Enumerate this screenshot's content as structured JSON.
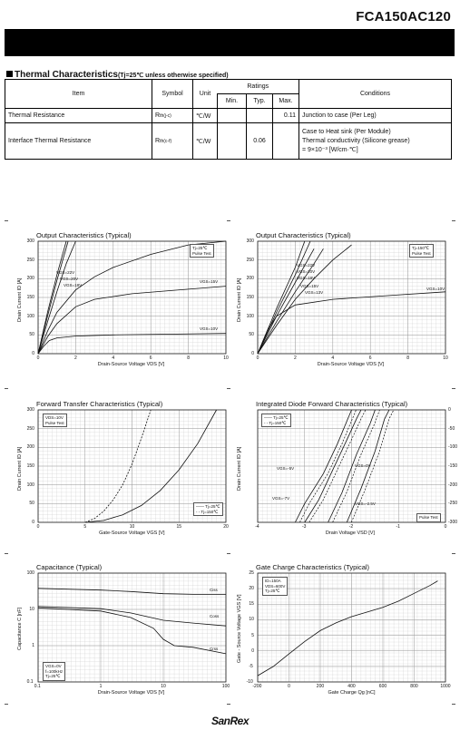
{
  "header": {
    "part_number": "FCA150AC120"
  },
  "thermal": {
    "title": "Thermal Characteristics",
    "condition": "(Tj=25℃ unless otherwise specified)",
    "head": {
      "item": "Item",
      "symbol": "Symbol",
      "unit": "Unit",
      "ratings": "Ratings",
      "min": "Min.",
      "typ": "Typ.",
      "max": "Max.",
      "conditions": "Conditions"
    },
    "rows": [
      {
        "item": "Thermal Resistance",
        "symbol": "R",
        "symbol_sub": "th(j-c)",
        "unit": "℃/W",
        "min": "",
        "typ": "",
        "max": "0.11",
        "conditions": [
          "Junction to case (Per Leg)"
        ]
      },
      {
        "item": "Interface Thermal Resistance",
        "symbol": "R",
        "symbol_sub": "th(c-f)",
        "unit": "℃/W",
        "min": "",
        "typ": "0.06",
        "max": "",
        "conditions": [
          "Case to Heat sink (Per Module)",
          "Thermal conductivity (Silicone grease)",
          "= 9×10⁻³ [W/cm·℃]"
        ]
      }
    ]
  },
  "footer": {
    "logo": "SanRex"
  },
  "chart_data": [
    {
      "type": "line",
      "title": "Output Characteristics (Typical)",
      "xlabel": "Drain-Source Voltage  VDS [V]",
      "ylabel": "Drain Current  ID [A]",
      "xlim": [
        0,
        10
      ],
      "ylim": [
        0,
        300
      ],
      "xticks": [
        "0",
        "2",
        "4",
        "6",
        "8",
        "10"
      ],
      "yticks": [
        "0",
        "50",
        "100",
        "150",
        "200",
        "250",
        "300"
      ],
      "condition_box": [
        "Tj=25℃",
        "Pulse Test"
      ],
      "annotations": [
        "VGS=22V",
        "VGS=20V",
        "VGS=18V",
        "VGS=15V",
        "VGS=10V"
      ],
      "series": [
        {
          "name": "VGS=22V",
          "x": [
            0,
            0.5,
            1,
            1.5
          ],
          "y": [
            0,
            110,
            210,
            300
          ]
        },
        {
          "name": "VGS=20V",
          "x": [
            0,
            0.5,
            1,
            1.6
          ],
          "y": [
            0,
            100,
            195,
            300
          ]
        },
        {
          "name": "VGS=18V",
          "x": [
            0,
            0.5,
            1,
            1.5,
            2
          ],
          "y": [
            0,
            85,
            165,
            240,
            300
          ]
        },
        {
          "name": "VGS=15V",
          "x": [
            0,
            0.5,
            1,
            2,
            3,
            4,
            6,
            8,
            10
          ],
          "y": [
            0,
            60,
            110,
            170,
            205,
            230,
            265,
            290,
            300
          ]
        },
        {
          "name": "VGS=15V (sat)",
          "x": [
            0,
            0.5,
            1,
            2,
            3,
            5,
            8,
            10
          ],
          "y": [
            0,
            45,
            80,
            125,
            145,
            160,
            172,
            180
          ]
        },
        {
          "name": "VGS=10V",
          "x": [
            0,
            0.3,
            0.6,
            1,
            2,
            4,
            7,
            10
          ],
          "y": [
            0,
            20,
            35,
            42,
            47,
            50,
            52,
            54
          ]
        }
      ]
    },
    {
      "type": "line",
      "title": "Output Characteristics (Typical)",
      "xlabel": "Drain-Source Voltage  VDS [V]",
      "ylabel": "Drain Current  ID [A]",
      "xlim": [
        0,
        10
      ],
      "ylim": [
        0,
        300
      ],
      "xticks": [
        "0",
        "2",
        "4",
        "6",
        "8",
        "10"
      ],
      "yticks": [
        "0",
        "50",
        "100",
        "150",
        "200",
        "250",
        "300"
      ],
      "condition_box": [
        "Tj=150℃",
        "Pulse Test"
      ],
      "annotations": [
        "VGS=22V",
        "VGS=20V",
        "VGS=18V",
        "VGS=15V",
        "VGS=13V",
        "VGS=10V"
      ],
      "series": [
        {
          "name": "VGS=22V",
          "x": [
            0,
            1,
            2,
            2.5
          ],
          "y": [
            0,
            120,
            230,
            300
          ]
        },
        {
          "name": "VGS=20V",
          "x": [
            0,
            1,
            2,
            2.8
          ],
          "y": [
            0,
            110,
            210,
            300
          ]
        },
        {
          "name": "VGS=18V",
          "x": [
            0,
            1,
            2,
            3
          ],
          "y": [
            0,
            100,
            190,
            280
          ]
        },
        {
          "name": "VGS=15V",
          "x": [
            0,
            1,
            2,
            3,
            3.5
          ],
          "y": [
            0,
            85,
            165,
            240,
            280
          ]
        },
        {
          "name": "VGS=13V",
          "x": [
            0,
            1,
            2,
            3,
            4,
            5
          ],
          "y": [
            0,
            75,
            145,
            200,
            250,
            290
          ]
        },
        {
          "name": "VGS=10V",
          "x": [
            0,
            0.5,
            1,
            2,
            4,
            7,
            10
          ],
          "y": [
            0,
            60,
            100,
            130,
            145,
            155,
            165
          ]
        }
      ]
    },
    {
      "type": "line",
      "title": "Forward Transfer Characteristics (Typical)",
      "xlabel": "Gate-Source Voltage  VGS [V]",
      "ylabel": "Drain Current  ID [A]",
      "xlim": [
        0,
        20
      ],
      "ylim": [
        0,
        300
      ],
      "xticks": [
        "0",
        "5",
        "10",
        "15",
        "20"
      ],
      "yticks": [
        "0",
        "50",
        "100",
        "150",
        "200",
        "250",
        "300"
      ],
      "condition_box": [
        "VDS=10V",
        "Pulse Test"
      ],
      "series": [
        {
          "name": "Tj=25℃",
          "x": [
            5,
            7,
            9,
            11,
            13,
            15,
            17,
            19
          ],
          "y": [
            0,
            5,
            20,
            45,
            85,
            140,
            210,
            300
          ]
        },
        {
          "name": "Tj=150℃",
          "x": [
            5,
            6,
            7,
            8,
            9,
            10,
            11,
            12
          ],
          "y": [
            0,
            10,
            30,
            60,
            100,
            155,
            225,
            300
          ]
        }
      ]
    },
    {
      "type": "line",
      "title": "Integrated Diode Forward Characteristics (Typical)",
      "xlabel": "Drain Voltage  VSD [V]",
      "ylabel": "Drain Current  ID [A]",
      "xlim": [
        -4,
        0
      ],
      "ylim": [
        -300,
        0
      ],
      "xticks": [
        "-4",
        "-3",
        "-2",
        "-1",
        "0"
      ],
      "yticks": [
        "0",
        "-50",
        "-100",
        "-150",
        "-200",
        "-250",
        "-300"
      ],
      "legend": [
        "Tj=25℃",
        "Tj=150℃"
      ],
      "condition_box": [
        "Pulse Test"
      ],
      "annotations": [
        "VGS=-5V",
        "VGS=-7V",
        "VGS=0V",
        "VGS=-2.5V"
      ],
      "series": [
        {
          "name": "VGS=-7V Tj=25℃",
          "x": [
            -3.2,
            -3.0,
            -2.6,
            -2.3,
            -2.1,
            -2.0
          ],
          "y": [
            -300,
            -250,
            -170,
            -90,
            -30,
            0
          ]
        },
        {
          "name": "VGS=-5V Tj=25℃",
          "x": [
            -3.0,
            -2.7,
            -2.4,
            -2.1,
            -1.9,
            -1.8
          ],
          "y": [
            -300,
            -240,
            -160,
            -80,
            -25,
            0
          ]
        },
        {
          "name": "VGS=-2.5V Tj=25℃",
          "x": [
            -2.5,
            -2.2,
            -1.9,
            -1.6,
            -1.5
          ],
          "y": [
            -300,
            -220,
            -120,
            -35,
            0
          ]
        },
        {
          "name": "VGS=0V Tj=25℃",
          "x": [
            -2.1,
            -1.8,
            -1.5,
            -1.3,
            -1.2
          ],
          "y": [
            -300,
            -210,
            -110,
            -25,
            0
          ]
        }
      ]
    },
    {
      "type": "line",
      "title": "Capacitance (Typical)",
      "xlabel": "Drain-Source Voltage  VDS [V]",
      "ylabel": "Capacitance  C [nF]",
      "xscale": "log",
      "yscale": "log",
      "xlim": [
        0.1,
        100
      ],
      "ylim": [
        0.1,
        100
      ],
      "xticks": [
        "0.1",
        "1",
        "10",
        "100"
      ],
      "yticks": [
        "0.1",
        "1",
        "10",
        "100"
      ],
      "condition_box": [
        "VGS=0V",
        "f=100kHz",
        "Tj=25℃"
      ],
      "series": [
        {
          "name": "Ciss",
          "x": [
            0.1,
            1,
            3,
            10,
            30,
            100
          ],
          "y": [
            38,
            34,
            31,
            27,
            26,
            26
          ]
        },
        {
          "name": "Coss",
          "x": [
            0.1,
            1,
            3,
            10,
            30,
            100
          ],
          "y": [
            12,
            10.5,
            8,
            5,
            4.2,
            3.5
          ]
        },
        {
          "name": "Crss",
          "x": [
            0.1,
            1,
            3,
            7,
            10,
            15,
            30,
            100
          ],
          "y": [
            11,
            9,
            6,
            3,
            1.5,
            1.0,
            0.9,
            0.6
          ]
        }
      ]
    },
    {
      "type": "line",
      "title": "Gate Charge Characteristics (Typical)",
      "xlabel": "Gate Charge  Qg [nC]",
      "ylabel": "Gate - Source Voltage  VGS [V]",
      "xlim": [
        -200,
        1000
      ],
      "ylim": [
        -10,
        25
      ],
      "xticks": [
        "-200",
        "0",
        "200",
        "400",
        "600",
        "800",
        "1000"
      ],
      "yticks": [
        "-10",
        "-5",
        "0",
        "5",
        "10",
        "15",
        "20",
        "25"
      ],
      "condition_box": [
        "ID=150A",
        "VDS=600V",
        "Tj=25℃"
      ],
      "series": [
        {
          "name": "VGS",
          "x": [
            -200,
            -100,
            0,
            100,
            200,
            300,
            400,
            500,
            600,
            700,
            800,
            900,
            950
          ],
          "y": [
            -8,
            -5,
            -1,
            3,
            6.5,
            9,
            11,
            12.5,
            14,
            16,
            18.5,
            21,
            22.5
          ]
        }
      ]
    }
  ]
}
